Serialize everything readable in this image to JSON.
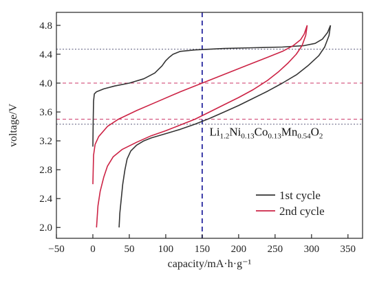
{
  "chart_data": {
    "type": "line",
    "xlabel": "capacity/mA·h·g⁻¹",
    "ylabel": "voltage/V",
    "xlim": [
      -50,
      370
    ],
    "ylim": [
      1.85,
      4.98
    ],
    "x_ticks": [
      -50,
      0,
      50,
      100,
      150,
      200,
      250,
      300,
      350
    ],
    "x_tick_labels": [
      "−50",
      "0",
      "50",
      "100",
      "150",
      "200",
      "250",
      "300",
      "350"
    ],
    "y_ticks": [
      2.0,
      2.4,
      2.8,
      3.2,
      3.6,
      4.0,
      4.4,
      4.8
    ],
    "y_tick_labels": [
      "2.0",
      "2.4",
      "2.8",
      "3.2",
      "3.6",
      "4.0",
      "4.4",
      "4.8"
    ],
    "legend_position": "bottom-right",
    "grid": false,
    "series": [
      {
        "name": "1st cycle",
        "color": "#333333",
        "charge": [
          [
            0,
            3.12
          ],
          [
            0.5,
            3.5
          ],
          [
            1,
            3.75
          ],
          [
            2,
            3.85
          ],
          [
            5,
            3.88
          ],
          [
            15,
            3.92
          ],
          [
            30,
            3.96
          ],
          [
            50,
            4.0
          ],
          [
            70,
            4.06
          ],
          [
            85,
            4.14
          ],
          [
            95,
            4.24
          ],
          [
            100,
            4.31
          ],
          [
            105,
            4.36
          ],
          [
            110,
            4.4
          ],
          [
            120,
            4.44
          ],
          [
            140,
            4.46
          ],
          [
            180,
            4.48
          ],
          [
            220,
            4.49
          ],
          [
            260,
            4.5
          ],
          [
            290,
            4.52
          ],
          [
            305,
            4.55
          ],
          [
            315,
            4.61
          ],
          [
            322,
            4.7
          ],
          [
            326,
            4.8
          ]
        ],
        "discharge": [
          [
            326,
            4.8
          ],
          [
            324,
            4.66
          ],
          [
            318,
            4.5
          ],
          [
            310,
            4.38
          ],
          [
            295,
            4.24
          ],
          [
            280,
            4.12
          ],
          [
            260,
            4.0
          ],
          [
            240,
            3.89
          ],
          [
            220,
            3.79
          ],
          [
            200,
            3.69
          ],
          [
            180,
            3.6
          ],
          [
            160,
            3.51
          ],
          [
            140,
            3.43
          ],
          [
            120,
            3.36
          ],
          [
            100,
            3.3
          ],
          [
            80,
            3.24
          ],
          [
            70,
            3.2
          ],
          [
            60,
            3.14
          ],
          [
            52,
            3.06
          ],
          [
            47,
            2.95
          ],
          [
            44,
            2.8
          ],
          [
            41,
            2.6
          ],
          [
            39,
            2.4
          ],
          [
            37,
            2.2
          ],
          [
            36,
            2.0
          ]
        ]
      },
      {
        "name": "2nd cycle",
        "color": "#cc2244",
        "charge": [
          [
            0,
            2.6
          ],
          [
            1,
            3.0
          ],
          [
            3,
            3.15
          ],
          [
            8,
            3.26
          ],
          [
            20,
            3.4
          ],
          [
            35,
            3.5
          ],
          [
            60,
            3.62
          ],
          [
            90,
            3.75
          ],
          [
            120,
            3.88
          ],
          [
            150,
            4.0
          ],
          [
            180,
            4.12
          ],
          [
            210,
            4.24
          ],
          [
            240,
            4.36
          ],
          [
            260,
            4.44
          ],
          [
            275,
            4.52
          ],
          [
            285,
            4.6
          ],
          [
            290,
            4.68
          ],
          [
            294,
            4.8
          ]
        ],
        "discharge": [
          [
            294,
            4.8
          ],
          [
            292,
            4.66
          ],
          [
            287,
            4.52
          ],
          [
            279,
            4.4
          ],
          [
            268,
            4.28
          ],
          [
            255,
            4.16
          ],
          [
            240,
            4.04
          ],
          [
            220,
            3.91
          ],
          [
            200,
            3.8
          ],
          [
            180,
            3.7
          ],
          [
            160,
            3.6
          ],
          [
            140,
            3.5
          ],
          [
            120,
            3.42
          ],
          [
            100,
            3.34
          ],
          [
            80,
            3.27
          ],
          [
            60,
            3.18
          ],
          [
            40,
            3.08
          ],
          [
            28,
            2.98
          ],
          [
            20,
            2.85
          ],
          [
            15,
            2.7
          ],
          [
            10,
            2.5
          ],
          [
            7,
            2.3
          ],
          [
            5,
            2.0
          ]
        ]
      }
    ],
    "reference_lines": {
      "vertical": {
        "x": 150,
        "color": "#3a3aa8"
      },
      "horizontal": [
        {
          "y": 4.47,
          "color": "#555577"
        },
        {
          "y": 4.0,
          "color": "#cc3366"
        },
        {
          "y": 3.5,
          "color": "#cc3366"
        },
        {
          "y": 3.43,
          "color": "#555577"
        }
      ]
    },
    "annotation": {
      "segments": [
        {
          "t": "Li",
          "sub": false
        },
        {
          "t": "1.2",
          "sub": true
        },
        {
          "t": "Ni",
          "sub": false
        },
        {
          "t": "0.13",
          "sub": true
        },
        {
          "t": "Co",
          "sub": false
        },
        {
          "t": "0.13",
          "sub": true
        },
        {
          "t": "Mn",
          "sub": false
        },
        {
          "t": "0.54",
          "sub": true
        },
        {
          "t": "O",
          "sub": false
        },
        {
          "t": "2",
          "sub": true
        }
      ],
      "x": 160,
      "y": 3.27
    }
  }
}
